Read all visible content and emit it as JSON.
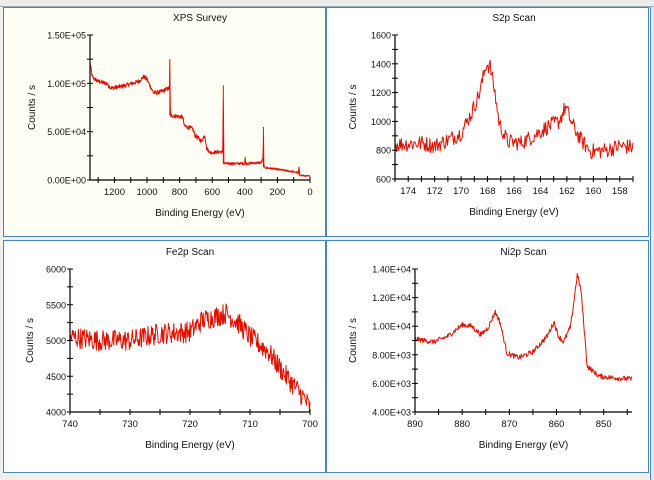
{
  "line_color": "#e01000",
  "panel_border_color": "#4a86b8",
  "chart_data": [
    {
      "type": "line",
      "title": "XPS Survey",
      "xlabel": "Binding Energy (eV)",
      "ylabel": "Counts / s",
      "xlim": [
        1350,
        0
      ],
      "ylim": [
        0,
        150000
      ],
      "xticks": [
        1200,
        1000,
        800,
        600,
        400,
        200,
        0
      ],
      "xtick_labels": [
        "1200",
        "1000",
        "800",
        "600",
        "400",
        "200",
        "0"
      ],
      "minor_xstep": 100,
      "yticks": [
        0,
        50000,
        100000,
        150000
      ],
      "ytick_labels": [
        "0.00E+00",
        "5.00E+04",
        "1.00E+05",
        "1.50E+05"
      ],
      "minor_ystep": 25000,
      "points": [
        [
          1350,
          121000
        ],
        [
          1335,
          106000
        ],
        [
          1300,
          102000
        ],
        [
          1250,
          100000
        ],
        [
          1220,
          95000
        ],
        [
          1150,
          97000
        ],
        [
          1050,
          102000
        ],
        [
          1020,
          107000
        ],
        [
          1000,
          104000
        ],
        [
          960,
          90000
        ],
        [
          920,
          91000
        ],
        [
          880,
          94000
        ],
        [
          862,
          95000
        ],
        [
          860,
          125000
        ],
        [
          857,
          67000
        ],
        [
          780,
          65000
        ],
        [
          772,
          56000
        ],
        [
          720,
          53000
        ],
        [
          705,
          46000
        ],
        [
          665,
          40000
        ],
        [
          645,
          47000
        ],
        [
          635,
          33000
        ],
        [
          610,
          28000
        ],
        [
          570,
          29000
        ],
        [
          535,
          29000
        ],
        [
          532,
          98000
        ],
        [
          529,
          17000
        ],
        [
          400,
          17000
        ],
        [
          398,
          24000
        ],
        [
          395,
          17000
        ],
        [
          300,
          18000
        ],
        [
          288,
          22000
        ],
        [
          286,
          55000
        ],
        [
          283,
          13000
        ],
        [
          200,
          11000
        ],
        [
          100,
          8500
        ],
        [
          72,
          7500
        ],
        [
          68,
          13000
        ],
        [
          62,
          5000
        ],
        [
          20,
          4000
        ],
        [
          0,
          4000
        ]
      ]
    },
    {
      "type": "line",
      "title": "S2p Scan",
      "xlabel": "Binding Energy (eV)",
      "ylabel": "Counts / s",
      "xlim": [
        175,
        157
      ],
      "ylim": [
        600,
        1600
      ],
      "xticks": [
        174,
        172,
        170,
        168,
        166,
        164,
        162,
        160,
        158
      ],
      "xtick_labels": [
        "174",
        "172",
        "170",
        "168",
        "166",
        "164",
        "162",
        "160",
        "158"
      ],
      "minor_xstep": 1,
      "yticks": [
        600,
        800,
        1000,
        1200,
        1400,
        1600
      ],
      "ytick_labels": [
        "600",
        "800",
        "1000",
        "1200",
        "1400",
        "1600"
      ],
      "minor_ystep": 100,
      "points": [
        [
          175,
          840
        ],
        [
          173,
          850
        ],
        [
          172,
          830
        ],
        [
          171,
          870
        ],
        [
          170,
          920
        ],
        [
          169.2,
          1060
        ],
        [
          168.6,
          1200
        ],
        [
          168.1,
          1400
        ],
        [
          167.8,
          1380
        ],
        [
          167.5,
          1230
        ],
        [
          167.1,
          980
        ],
        [
          166.5,
          860
        ],
        [
          165.5,
          850
        ],
        [
          164.5,
          900
        ],
        [
          163.5,
          960
        ],
        [
          162.6,
          1000
        ],
        [
          162.1,
          1100
        ],
        [
          161.6,
          980
        ],
        [
          161,
          880
        ],
        [
          160.2,
          790
        ],
        [
          159,
          800
        ],
        [
          158,
          830
        ],
        [
          157,
          820
        ]
      ]
    },
    {
      "type": "line",
      "title": "Fe2p Scan",
      "xlabel": "Binding Energy (eV)",
      "ylabel": "Counts / s",
      "xlim": [
        740,
        700
      ],
      "ylim": [
        4000,
        6000
      ],
      "xticks": [
        740,
        730,
        720,
        710,
        700
      ],
      "xtick_labels": [
        "740",
        "730",
        "720",
        "710",
        "700"
      ],
      "minor_xstep": 5,
      "yticks": [
        4000,
        4500,
        5000,
        5500,
        6000
      ],
      "ytick_labels": [
        "4000",
        "4500",
        "5000",
        "5500",
        "6000"
      ],
      "minor_ystep": 250,
      "points": [
        [
          740,
          5050
        ],
        [
          735,
          5000
        ],
        [
          730,
          5000
        ],
        [
          725,
          5100
        ],
        [
          720,
          5120
        ],
        [
          718,
          5280
        ],
        [
          714,
          5380
        ],
        [
          712,
          5250
        ],
        [
          710,
          5050
        ],
        [
          707,
          4850
        ],
        [
          704,
          4500
        ],
        [
          701,
          4200
        ],
        [
          700,
          4050
        ]
      ]
    },
    {
      "type": "line",
      "title": "Ni2p Scan",
      "xlabel": "Binding Energy (eV)",
      "ylabel": "Counts / s",
      "xlim": [
        890,
        844
      ],
      "ylim": [
        4000,
        14000
      ],
      "xticks": [
        890,
        880,
        870,
        860,
        850
      ],
      "xtick_labels": [
        "890",
        "880",
        "870",
        "860",
        "850"
      ],
      "minor_xstep": 5,
      "yticks": [
        4000,
        6000,
        8000,
        10000,
        12000,
        14000
      ],
      "ytick_labels": [
        "4.00E+03",
        "6.00E+03",
        "8.00E+03",
        "1.00E+04",
        "1.20E+04",
        "1.40E+04"
      ],
      "minor_ystep": 1000,
      "points": [
        [
          890,
          9100
        ],
        [
          886,
          8900
        ],
        [
          883,
          9300
        ],
        [
          880,
          10100
        ],
        [
          878,
          10000
        ],
        [
          876,
          9400
        ],
        [
          874.5,
          9900
        ],
        [
          873,
          11000
        ],
        [
          872,
          10300
        ],
        [
          870.5,
          8100
        ],
        [
          868,
          7800
        ],
        [
          865,
          8200
        ],
        [
          862,
          9300
        ],
        [
          860.5,
          10300
        ],
        [
          859.6,
          9300
        ],
        [
          858.5,
          8900
        ],
        [
          857,
          10000
        ],
        [
          855.6,
          13600
        ],
        [
          854.8,
          12500
        ],
        [
          853.5,
          7200
        ],
        [
          851,
          6500
        ],
        [
          848,
          6400
        ],
        [
          844,
          6300
        ]
      ]
    }
  ]
}
